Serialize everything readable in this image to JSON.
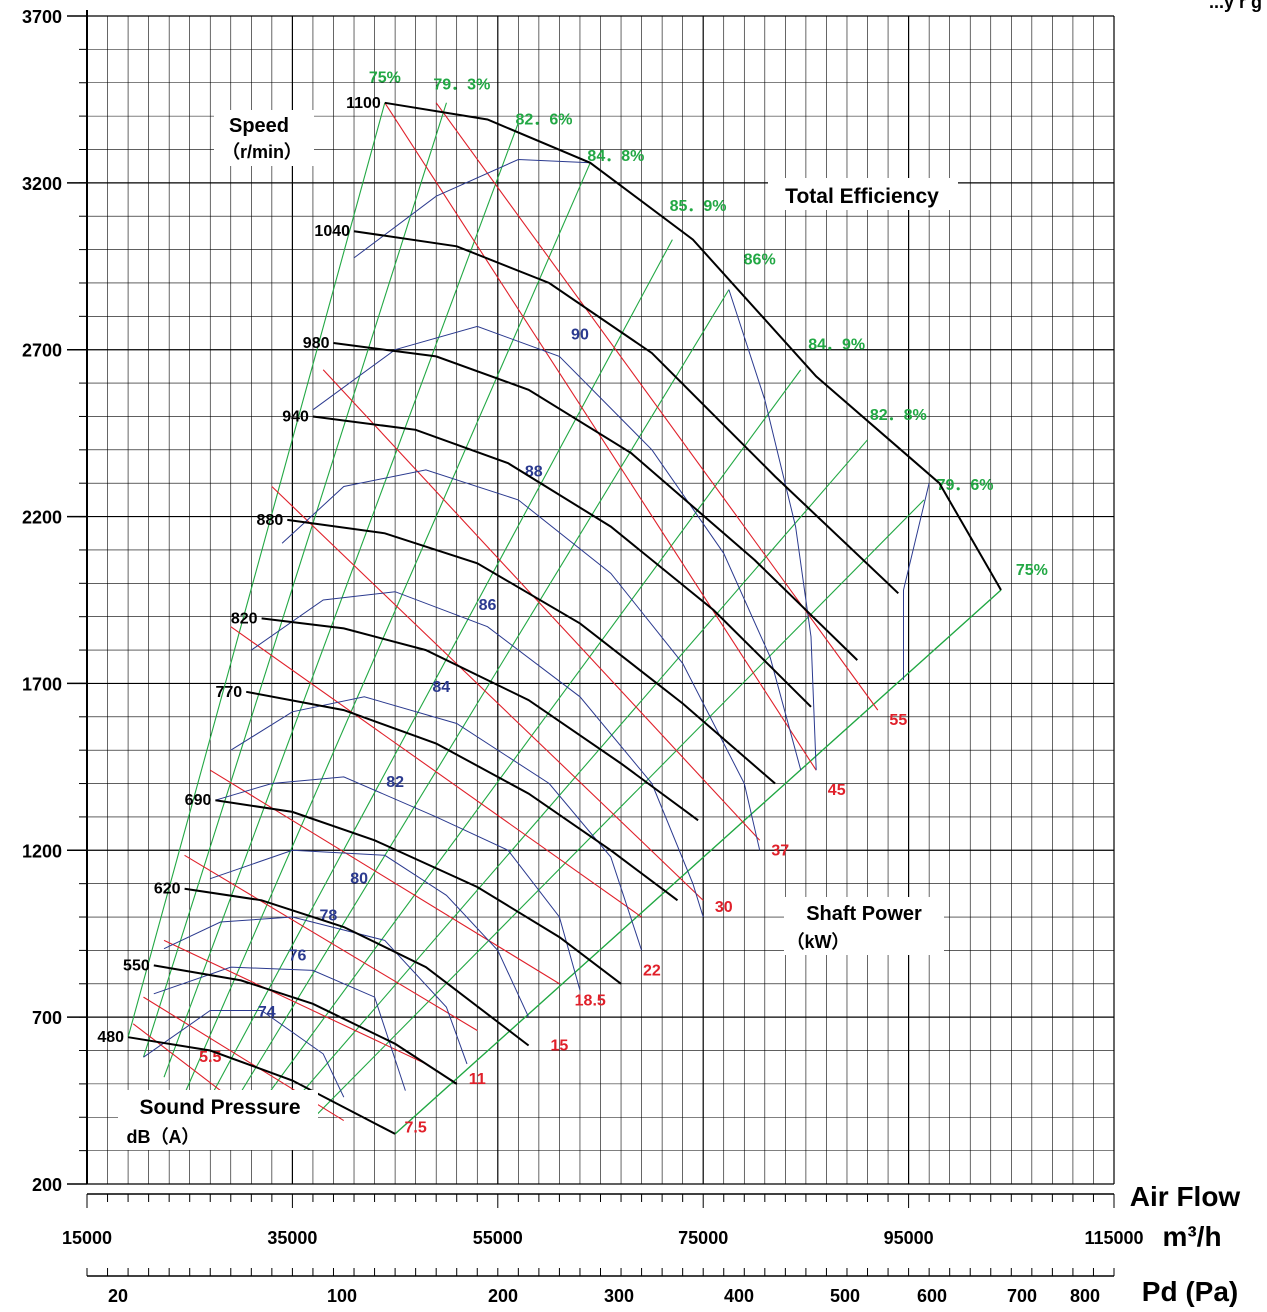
{
  "chart_data": {
    "type": "line",
    "title": "",
    "colors": {
      "speed": "#000000",
      "efficiency": "#22a844",
      "power": "#e0202a",
      "sound": "#2b3a8f",
      "grid": "#000000"
    },
    "y_axis": {
      "ticks": [
        "3700",
        "3200",
        "2700",
        "2200",
        "1700",
        "1200",
        "700",
        "200"
      ],
      "ylim": [
        200,
        3700
      ]
    },
    "x_axis": {
      "ticks": [
        "15000",
        "35000",
        "55000",
        "75000",
        "95000",
        "115000"
      ],
      "xlim": [
        15000,
        115000
      ],
      "unit_label": "m³/h",
      "title": "Air Flow"
    },
    "pd_axis": {
      "ticks": [
        "20",
        "100",
        "200",
        "300",
        "400",
        "500",
        "600",
        "700",
        "800"
      ],
      "title": "Pd (Pa)"
    },
    "header_partial": "...y   r  g",
    "labels": {
      "speed_title": "Speed",
      "speed_unit": "（r/min）",
      "efficiency_title": "Total  Efficiency",
      "power_title": "Shaft  Power",
      "power_unit": "（kW）",
      "sound_title": "Sound  Pressure",
      "sound_unit": "dB（A）"
    },
    "speed_curves": [
      {
        "rpm": "480",
        "points": [
          [
            19000,
            640
          ],
          [
            27000,
            600
          ],
          [
            35000,
            510
          ],
          [
            40000,
            430
          ],
          [
            45000,
            350
          ]
        ]
      },
      {
        "rpm": "550",
        "points": [
          [
            21500,
            855
          ],
          [
            30000,
            810
          ],
          [
            37000,
            740
          ],
          [
            45000,
            620
          ],
          [
            51000,
            500
          ]
        ]
      },
      {
        "rpm": "620",
        "points": [
          [
            24500,
            1085
          ],
          [
            32000,
            1050
          ],
          [
            40000,
            970
          ],
          [
            48000,
            850
          ],
          [
            58000,
            615
          ]
        ]
      },
      {
        "rpm": "690",
        "points": [
          [
            27500,
            1350
          ],
          [
            35000,
            1315
          ],
          [
            43000,
            1230
          ],
          [
            53000,
            1090
          ],
          [
            61000,
            940
          ],
          [
            67000,
            800
          ]
        ]
      },
      {
        "rpm": "770",
        "points": [
          [
            30500,
            1675
          ],
          [
            40000,
            1620
          ],
          [
            49000,
            1520
          ],
          [
            58000,
            1370
          ],
          [
            66000,
            1200
          ],
          [
            72500,
            1050
          ]
        ]
      },
      {
        "rpm": "820",
        "points": [
          [
            32000,
            1895
          ],
          [
            40000,
            1865
          ],
          [
            48000,
            1800
          ],
          [
            58000,
            1650
          ],
          [
            67000,
            1460
          ],
          [
            74500,
            1290
          ]
        ]
      },
      {
        "rpm": "880",
        "points": [
          [
            34500,
            2190
          ],
          [
            44000,
            2150
          ],
          [
            53000,
            2060
          ],
          [
            63000,
            1880
          ],
          [
            73000,
            1640
          ],
          [
            82000,
            1400
          ]
        ]
      },
      {
        "rpm": "940",
        "points": [
          [
            37000,
            2500
          ],
          [
            47000,
            2460
          ],
          [
            56000,
            2360
          ],
          [
            66000,
            2170
          ],
          [
            76000,
            1920
          ],
          [
            85500,
            1630
          ]
        ]
      },
      {
        "rpm": "980",
        "points": [
          [
            39000,
            2720
          ],
          [
            49000,
            2680
          ],
          [
            58000,
            2580
          ],
          [
            68000,
            2390
          ],
          [
            80000,
            2070
          ],
          [
            90000,
            1770
          ]
        ]
      },
      {
        "rpm": "1040",
        "points": [
          [
            41000,
            3055
          ],
          [
            51000,
            3010
          ],
          [
            60000,
            2900
          ],
          [
            70000,
            2690
          ],
          [
            82000,
            2320
          ],
          [
            94000,
            1970
          ]
        ]
      },
      {
        "rpm": "1100",
        "points": [
          [
            44000,
            3440
          ],
          [
            54000,
            3390
          ],
          [
            64000,
            3260
          ],
          [
            74000,
            3030
          ],
          [
            86000,
            2620
          ],
          [
            98000,
            2300
          ],
          [
            104000,
            1980
          ]
        ]
      }
    ],
    "efficiency_lines": [
      {
        "label": "75%",
        "from": [
          19000,
          640
        ],
        "to": [
          44000,
          3440
        ],
        "label_at": [
          44000,
          3500
        ]
      },
      {
        "label": "79．3%",
        "from": [
          20500,
          580
        ],
        "to": [
          50000,
          3440
        ],
        "label_at": [
          51500,
          3480
        ]
      },
      {
        "label": "82．6%",
        "from": [
          22500,
          520
        ],
        "to": [
          57000,
          3380
        ],
        "label_at": [
          59500,
          3375
        ]
      },
      {
        "label": "84．8%",
        "from": [
          24500,
          470
        ],
        "to": [
          64000,
          3260
        ],
        "label_at": [
          66500,
          3265
        ]
      },
      {
        "label": "85．9%",
        "from": [
          26500,
          430
        ],
        "to": [
          72000,
          3030
        ],
        "label_at": [
          74500,
          3115
        ]
      },
      {
        "label": "86%",
        "from": [
          28500,
          400
        ],
        "to": [
          77500,
          2880
        ],
        "label_at": [
          80500,
          2955
        ]
      },
      {
        "label": "84．9%",
        "from": [
          30500,
          380
        ],
        "to": [
          84500,
          2640
        ],
        "label_at": [
          88000,
          2700
        ]
      },
      {
        "label": "82．8%",
        "from": [
          33000,
          370
        ],
        "to": [
          91000,
          2430
        ],
        "label_at": [
          94000,
          2490
        ]
      },
      {
        "label": "79．6%",
        "from": [
          36000,
          365
        ],
        "to": [
          96500,
          2250
        ],
        "label_at": [
          100500,
          2280
        ]
      },
      {
        "label": "75%",
        "from": [
          45000,
          350
        ],
        "to": [
          104000,
          1980
        ],
        "label_at": [
          107000,
          2025
        ]
      }
    ],
    "power_lines": [
      {
        "label": "5.5",
        "from": [
          19500,
          680
        ],
        "to": [
          28000,
          480
        ],
        "label_at": [
          27000,
          565
        ]
      },
      {
        "label": "7.5",
        "from": [
          20500,
          760
        ],
        "to": [
          40000,
          390
        ],
        "label_at": [
          47000,
          355
        ]
      },
      {
        "label": "11",
        "from": [
          22500,
          930
        ],
        "to": [
          48000,
          560
        ],
        "label_at": [
          53000,
          500
        ]
      },
      {
        "label": "15",
        "from": [
          24500,
          1185
        ],
        "to": [
          53000,
          660
        ],
        "label_at": [
          61000,
          600
        ]
      },
      {
        "label": "18.5",
        "from": [
          27000,
          1440
        ],
        "to": [
          61000,
          800
        ],
        "label_at": [
          64000,
          735
        ]
      },
      {
        "label": "22",
        "from": [
          29000,
          1870
        ],
        "to": [
          69000,
          1000
        ],
        "label_at": [
          70000,
          825
        ]
      },
      {
        "label": "30",
        "from": [
          33000,
          2290
        ],
        "to": [
          75000,
          1050
        ],
        "label_at": [
          77000,
          1015
        ]
      },
      {
        "label": "37",
        "from": [
          38000,
          2640
        ],
        "to": [
          80500,
          1230
        ],
        "label_at": [
          82500,
          1185
        ]
      },
      {
        "label": "45",
        "from": [
          44000,
          3440
        ],
        "to": [
          86000,
          1440
        ],
        "label_at": [
          88000,
          1365
        ]
      },
      {
        "label": "55",
        "from": [
          49000,
          3440
        ],
        "to": [
          92000,
          1620
        ],
        "label_at": [
          94000,
          1575
        ]
      }
    ],
    "sound_curves": [
      {
        "label": "74",
        "points": [
          [
            20500,
            580
          ],
          [
            27000,
            720
          ],
          [
            32000,
            720
          ],
          [
            38000,
            590
          ],
          [
            40000,
            460
          ]
        ],
        "label_at": [
          32500,
          700
        ]
      },
      {
        "label": "76",
        "points": [
          [
            21500,
            770
          ],
          [
            29000,
            850
          ],
          [
            37000,
            840
          ],
          [
            43000,
            760
          ],
          [
            46000,
            480
          ]
        ],
        "label_at": [
          35500,
          870
        ]
      },
      {
        "label": "78",
        "points": [
          [
            22500,
            905
          ],
          [
            28000,
            985
          ],
          [
            35000,
            1000
          ],
          [
            44000,
            930
          ],
          [
            50000,
            730
          ],
          [
            52000,
            560
          ]
        ],
        "label_at": [
          38500,
          990
        ]
      },
      {
        "label": "80",
        "points": [
          [
            27000,
            1115
          ],
          [
            35000,
            1200
          ],
          [
            44000,
            1185
          ],
          [
            50000,
            1065
          ],
          [
            55000,
            900
          ],
          [
            58000,
            700
          ]
        ],
        "label_at": [
          41500,
          1100
        ]
      },
      {
        "label": "82",
        "points": [
          [
            27500,
            1350
          ],
          [
            33000,
            1400
          ],
          [
            40000,
            1420
          ],
          [
            49000,
            1300
          ],
          [
            56000,
            1200
          ],
          [
            61000,
            1000
          ],
          [
            63000,
            780
          ]
        ],
        "label_at": [
          45000,
          1390
        ]
      },
      {
        "label": "84",
        "points": [
          [
            29000,
            1500
          ],
          [
            35000,
            1615
          ],
          [
            42000,
            1660
          ],
          [
            51000,
            1580
          ],
          [
            60000,
            1400
          ],
          [
            66000,
            1180
          ],
          [
            69000,
            900
          ]
        ],
        "label_at": [
          49500,
          1675
        ]
      },
      {
        "label": "86",
        "points": [
          [
            31000,
            1800
          ],
          [
            38000,
            1950
          ],
          [
            45000,
            1975
          ],
          [
            54000,
            1870
          ],
          [
            63000,
            1660
          ],
          [
            70000,
            1400
          ],
          [
            74000,
            1100
          ],
          [
            75000,
            1000
          ]
        ],
        "label_at": [
          54000,
          1920
        ]
      },
      {
        "label": "88",
        "points": [
          [
            34000,
            2120
          ],
          [
            40000,
            2290
          ],
          [
            48000,
            2340
          ],
          [
            57000,
            2250
          ],
          [
            66000,
            2030
          ],
          [
            73000,
            1760
          ],
          [
            79000,
            1400
          ],
          [
            80500,
            1200
          ]
        ],
        "label_at": [
          58500,
          2320
        ]
      },
      {
        "label": "90",
        "points": [
          [
            37000,
            2520
          ],
          [
            45000,
            2700
          ],
          [
            53000,
            2770
          ],
          [
            61000,
            2680
          ],
          [
            70000,
            2400
          ],
          [
            77000,
            2090
          ],
          [
            81500,
            1780
          ],
          [
            84500,
            1440
          ]
        ],
        "label_at": [
          63000,
          2730
        ]
      },
      {
        "label": "",
        "points": [
          [
            41000,
            2975
          ],
          [
            49000,
            3160
          ],
          [
            57000,
            3270
          ],
          [
            64000,
            3260
          ]
        ],
        "label_at": [
          0,
          0
        ]
      },
      {
        "label": "",
        "points": [
          [
            77500,
            2880
          ],
          [
            81000,
            2550
          ],
          [
            84000,
            2170
          ],
          [
            85500,
            1840
          ],
          [
            86000,
            1440
          ]
        ],
        "label_at": [
          0,
          0
        ]
      },
      {
        "label": "",
        "points": [
          [
            97000,
            2300
          ],
          [
            94500,
            1980
          ],
          [
            94500,
            1710
          ]
        ],
        "label_at": [
          0,
          0
        ]
      }
    ]
  }
}
